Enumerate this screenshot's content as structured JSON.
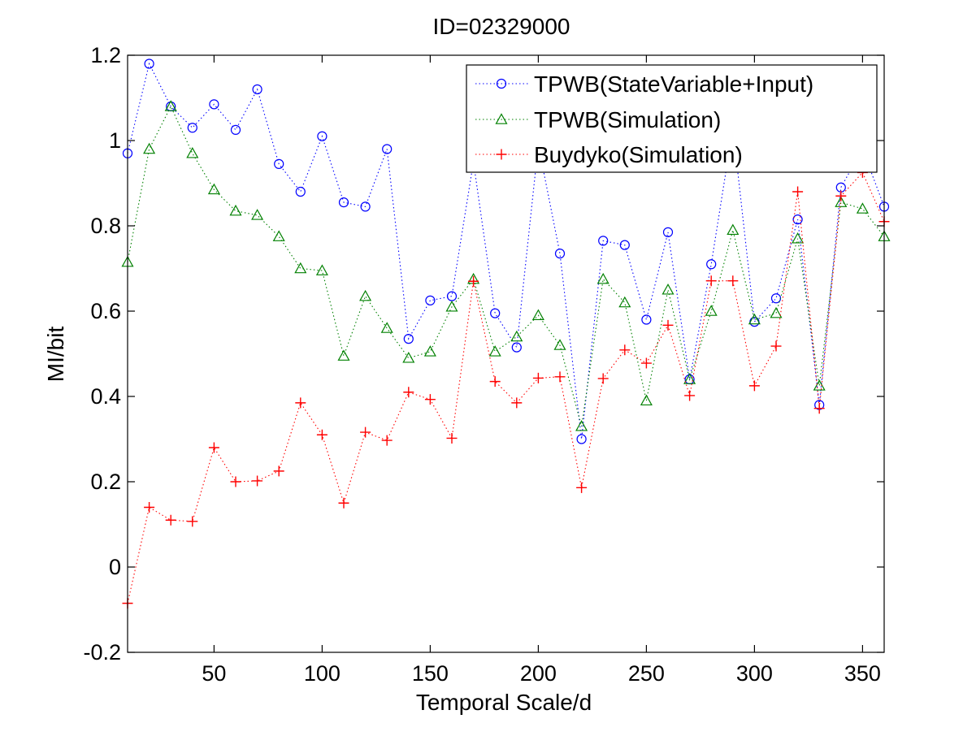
{
  "colors": {
    "background": "#ffffff",
    "axes": "#000000",
    "series_blue": "#0000ff",
    "series_green": "#008000",
    "series_red": "#ff0000"
  },
  "chart_data": {
    "type": "line",
    "title": "ID=02329000",
    "xlabel": "Temporal Scale/d",
    "ylabel": "MI/bit",
    "xlim": [
      10,
      360
    ],
    "ylim": [
      -0.2,
      1.2
    ],
    "x_ticks": [
      50,
      100,
      150,
      200,
      250,
      300,
      350
    ],
    "y_ticks": [
      -0.2,
      0,
      0.2,
      0.4,
      0.6,
      0.8,
      1,
      1.2
    ],
    "x_tick_labels": [
      "50",
      "100",
      "150",
      "200",
      "250",
      "300",
      "350"
    ],
    "y_tick_labels": [
      "-0.2",
      "0",
      "0.2",
      "0.4",
      "0.6",
      "0.8",
      "1",
      "1.2"
    ],
    "grid": false,
    "legend_position": "top-right",
    "line_style": "dotted",
    "x": [
      10,
      20,
      30,
      40,
      50,
      60,
      70,
      80,
      90,
      100,
      110,
      120,
      130,
      140,
      150,
      160,
      170,
      180,
      190,
      200,
      210,
      220,
      230,
      240,
      250,
      260,
      270,
      280,
      290,
      300,
      310,
      320,
      330,
      340,
      350,
      360
    ],
    "series": [
      {
        "name": "TPWB(StateVariable+Input)",
        "marker": "circle",
        "color": "#0000ff",
        "values": [
          0.97,
          1.18,
          1.08,
          1.03,
          1.085,
          1.025,
          1.12,
          0.945,
          0.88,
          1.01,
          0.855,
          0.845,
          0.98,
          0.535,
          0.625,
          0.635,
          0.95,
          0.595,
          0.515,
          0.99,
          0.735,
          0.3,
          0.765,
          0.755,
          0.58,
          0.785,
          0.44,
          0.71,
          1.03,
          0.575,
          0.63,
          0.815,
          0.38,
          0.89,
          0.98,
          0.845
        ]
      },
      {
        "name": "TPWB(Simulation)",
        "marker": "triangle",
        "color": "#008000",
        "values": [
          0.715,
          0.98,
          1.08,
          0.97,
          0.885,
          0.835,
          0.825,
          0.775,
          0.7,
          0.695,
          0.495,
          0.635,
          0.56,
          0.49,
          0.505,
          0.61,
          0.675,
          0.505,
          0.54,
          0.59,
          0.52,
          0.33,
          0.675,
          0.62,
          0.39,
          0.65,
          0.44,
          0.6,
          0.79,
          0.58,
          0.595,
          0.77,
          0.425,
          0.855,
          0.84,
          0.775
        ]
      },
      {
        "name": "Buydyko(Simulation)",
        "marker": "plus",
        "color": "#ff0000",
        "values": [
          -0.085,
          0.14,
          0.11,
          0.107,
          0.28,
          0.2,
          0.202,
          0.225,
          0.385,
          0.31,
          0.15,
          0.316,
          0.297,
          0.41,
          0.393,
          0.302,
          0.67,
          0.435,
          0.385,
          0.443,
          0.446,
          0.186,
          0.442,
          0.509,
          0.478,
          0.567,
          0.402,
          0.671,
          0.671,
          0.425,
          0.518,
          0.88,
          0.372,
          0.87,
          0.925,
          0.81
        ]
      }
    ]
  }
}
